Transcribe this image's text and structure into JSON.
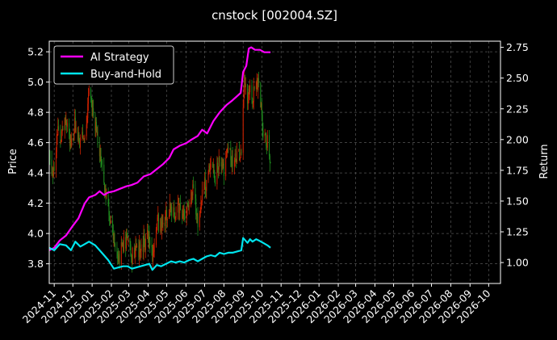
{
  "chart_data": {
    "type": "line",
    "title": "cnstock [002004.SZ]",
    "xlabel": "",
    "ylabel": "Price",
    "ylabel_right": "Return",
    "grid": true,
    "legend_position": "top-left",
    "x_tick_labels": [
      "2024-11",
      "2024-12",
      "2025-01",
      "2025-02",
      "2025-03",
      "2025-04",
      "2025-05",
      "2025-06",
      "2025-07",
      "2025-08",
      "2025-09",
      "2025-10",
      "2025-11",
      "2025-12",
      "2026-01",
      "2026-02",
      "2026-03",
      "2026-04",
      "2026-05",
      "2026-06",
      "2026-07",
      "2026-08",
      "2026-09",
      "2026-10"
    ],
    "xlim": [
      "2024-10-24",
      "2026-10-20"
    ],
    "y_left": {
      "ylim": [
        3.67,
        5.27
      ],
      "ticks": [
        3.8,
        4.0,
        4.2,
        4.4,
        4.6,
        4.8,
        5.0,
        5.2
      ]
    },
    "y_right": {
      "ylim": [
        0.83,
        2.8
      ],
      "ticks": [
        "1.00",
        "1.25",
        "1.50",
        "1.75",
        "2.00",
        "2.25",
        "2.50",
        "2.75"
      ]
    },
    "candle_colors": {
      "up": "#cc2200",
      "down": "#1e8a1e"
    },
    "price_anchors": [
      [
        "2024-10-24",
        4.5
      ],
      [
        "2024-10-30",
        4.38
      ],
      [
        "2024-11-06",
        4.68
      ],
      [
        "2024-11-13",
        4.62
      ],
      [
        "2024-11-20",
        4.75
      ],
      [
        "2024-11-27",
        4.6
      ],
      [
        "2024-12-05",
        4.72
      ],
      [
        "2024-12-13",
        4.6
      ],
      [
        "2024-12-20",
        4.66
      ],
      [
        "2024-12-27",
        4.9
      ],
      [
        "2025-01-06",
        4.7
      ],
      [
        "2025-01-13",
        4.55
      ],
      [
        "2025-01-20",
        4.3
      ],
      [
        "2025-01-27",
        4.18
      ],
      [
        "2025-02-05",
        3.98
      ],
      [
        "2025-02-12",
        3.82
      ],
      [
        "2025-02-20",
        3.92
      ],
      [
        "2025-02-27",
        3.95
      ],
      [
        "2025-03-06",
        3.85
      ],
      [
        "2025-03-13",
        3.88
      ],
      [
        "2025-03-20",
        3.92
      ],
      [
        "2025-03-27",
        3.95
      ],
      [
        "2025-04-03",
        3.98
      ],
      [
        "2025-04-08",
        3.86
      ],
      [
        "2025-04-15",
        4.08
      ],
      [
        "2025-04-22",
        4.05
      ],
      [
        "2025-04-30",
        4.12
      ],
      [
        "2025-05-08",
        4.18
      ],
      [
        "2025-05-15",
        4.12
      ],
      [
        "2025-05-22",
        4.16
      ],
      [
        "2025-05-29",
        4.1
      ],
      [
        "2025-06-06",
        4.18
      ],
      [
        "2025-06-13",
        4.28
      ],
      [
        "2025-06-20",
        4.1
      ],
      [
        "2025-06-27",
        4.25
      ],
      [
        "2025-07-04",
        4.35
      ],
      [
        "2025-07-11",
        4.45
      ],
      [
        "2025-07-18",
        4.38
      ],
      [
        "2025-07-25",
        4.5
      ],
      [
        "2025-08-01",
        4.42
      ],
      [
        "2025-08-08",
        4.55
      ],
      [
        "2025-08-15",
        4.48
      ],
      [
        "2025-08-22",
        4.5
      ],
      [
        "2025-08-29",
        4.55
      ],
      [
        "2025-09-03",
        5.05
      ],
      [
        "2025-09-08",
        4.82
      ],
      [
        "2025-09-12",
        5.0
      ],
      [
        "2025-09-16",
        4.92
      ],
      [
        "2025-09-22",
        4.95
      ],
      [
        "2025-09-26",
        5.05
      ],
      [
        "2025-10-03",
        4.68
      ],
      [
        "2025-10-10",
        4.6
      ],
      [
        "2025-10-15",
        4.45
      ]
    ],
    "series": [
      {
        "name": "AI Strategy",
        "color": "#ff00ff",
        "points": [
          [
            "2024-10-24",
            1.1
          ],
          [
            "2024-11-01",
            1.12
          ],
          [
            "2024-11-10",
            1.18
          ],
          [
            "2024-11-20",
            1.22
          ],
          [
            "2024-12-01",
            1.3
          ],
          [
            "2024-12-10",
            1.36
          ],
          [
            "2024-12-20",
            1.48
          ],
          [
            "2024-12-27",
            1.53
          ],
          [
            "2025-01-06",
            1.55
          ],
          [
            "2025-01-13",
            1.58
          ],
          [
            "2025-01-20",
            1.55
          ],
          [
            "2025-01-27",
            1.57
          ],
          [
            "2025-02-05",
            1.58
          ],
          [
            "2025-02-15",
            1.6
          ],
          [
            "2025-02-25",
            1.62
          ],
          [
            "2025-03-05",
            1.63
          ],
          [
            "2025-03-15",
            1.65
          ],
          [
            "2025-03-25",
            1.7
          ],
          [
            "2025-04-05",
            1.72
          ],
          [
            "2025-04-15",
            1.76
          ],
          [
            "2025-04-25",
            1.8
          ],
          [
            "2025-05-05",
            1.85
          ],
          [
            "2025-05-12",
            1.92
          ],
          [
            "2025-05-22",
            1.95
          ],
          [
            "2025-06-01",
            1.97
          ],
          [
            "2025-06-10",
            2.0
          ],
          [
            "2025-06-20",
            2.03
          ],
          [
            "2025-06-27",
            2.08
          ],
          [
            "2025-07-05",
            2.05
          ],
          [
            "2025-07-15",
            2.15
          ],
          [
            "2025-07-25",
            2.22
          ],
          [
            "2025-08-05",
            2.28
          ],
          [
            "2025-08-15",
            2.32
          ],
          [
            "2025-08-28",
            2.38
          ],
          [
            "2025-09-01",
            2.55
          ],
          [
            "2025-09-06",
            2.6
          ],
          [
            "2025-09-10",
            2.74
          ],
          [
            "2025-09-14",
            2.75
          ],
          [
            "2025-09-20",
            2.73
          ],
          [
            "2025-09-28",
            2.73
          ],
          [
            "2025-10-05",
            2.71
          ],
          [
            "2025-10-15",
            2.71
          ]
        ]
      },
      {
        "name": "Buy-and-Hold",
        "color": "#00e5ee",
        "points": [
          [
            "2024-10-24",
            1.12
          ],
          [
            "2024-11-01",
            1.1
          ],
          [
            "2024-11-10",
            1.15
          ],
          [
            "2024-11-20",
            1.14
          ],
          [
            "2024-11-28",
            1.1
          ],
          [
            "2024-12-05",
            1.17
          ],
          [
            "2024-12-13",
            1.13
          ],
          [
            "2024-12-20",
            1.15
          ],
          [
            "2024-12-27",
            1.17
          ],
          [
            "2025-01-06",
            1.14
          ],
          [
            "2025-01-13",
            1.1
          ],
          [
            "2025-01-20",
            1.06
          ],
          [
            "2025-01-27",
            1.02
          ],
          [
            "2025-02-05",
            0.95
          ],
          [
            "2025-02-12",
            0.96
          ],
          [
            "2025-02-20",
            0.97
          ],
          [
            "2025-02-27",
            0.97
          ],
          [
            "2025-03-06",
            0.95
          ],
          [
            "2025-03-13",
            0.96
          ],
          [
            "2025-03-20",
            0.97
          ],
          [
            "2025-03-27",
            0.98
          ],
          [
            "2025-04-03",
            0.99
          ],
          [
            "2025-04-08",
            0.94
          ],
          [
            "2025-04-15",
            0.98
          ],
          [
            "2025-04-22",
            0.97
          ],
          [
            "2025-04-30",
            0.99
          ],
          [
            "2025-05-08",
            1.01
          ],
          [
            "2025-05-15",
            1.0
          ],
          [
            "2025-05-22",
            1.01
          ],
          [
            "2025-05-29",
            1.0
          ],
          [
            "2025-06-06",
            1.02
          ],
          [
            "2025-06-13",
            1.03
          ],
          [
            "2025-06-20",
            1.01
          ],
          [
            "2025-06-27",
            1.03
          ],
          [
            "2025-07-04",
            1.05
          ],
          [
            "2025-07-11",
            1.06
          ],
          [
            "2025-07-18",
            1.05
          ],
          [
            "2025-07-25",
            1.08
          ],
          [
            "2025-08-01",
            1.07
          ],
          [
            "2025-08-08",
            1.08
          ],
          [
            "2025-08-15",
            1.08
          ],
          [
            "2025-08-22",
            1.09
          ],
          [
            "2025-08-29",
            1.1
          ],
          [
            "2025-09-01",
            1.2
          ],
          [
            "2025-09-08",
            1.16
          ],
          [
            "2025-09-12",
            1.19
          ],
          [
            "2025-09-16",
            1.17
          ],
          [
            "2025-09-22",
            1.19
          ],
          [
            "2025-09-26",
            1.18
          ],
          [
            "2025-10-03",
            1.16
          ],
          [
            "2025-10-10",
            1.14
          ],
          [
            "2025-10-15",
            1.12
          ]
        ]
      }
    ]
  }
}
